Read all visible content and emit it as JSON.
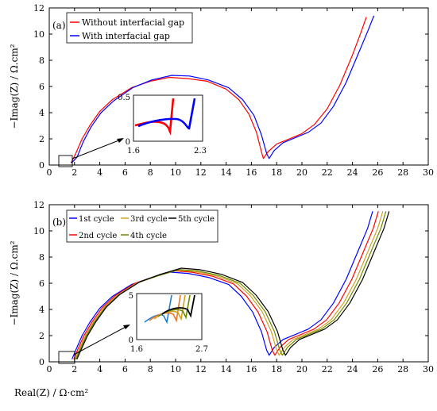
{
  "chart_data": [
    {
      "type": "line",
      "panel_label": "(a)",
      "xlabel": "",
      "ylabel": "−Imag(Z) / Ω.cm²",
      "xlim": [
        0,
        30
      ],
      "ylim": [
        0,
        12
      ],
      "xticks": [
        0,
        2,
        4,
        6,
        8,
        10,
        12,
        14,
        16,
        18,
        20,
        22,
        24,
        26,
        28,
        30
      ],
      "yticks": [
        0,
        2,
        4,
        6,
        8,
        10,
        12
      ],
      "legend_position": "top-left",
      "series": [
        {
          "name": "Without interfacial gap",
          "color": "#ff0000",
          "points": [
            [
              1.75,
              0.15
            ],
            [
              1.8,
              0.3
            ],
            [
              2.1,
              0.9
            ],
            [
              2.6,
              2.0
            ],
            [
              3.2,
              3.0
            ],
            [
              4.0,
              4.1
            ],
            [
              5.0,
              5.0
            ],
            [
              6.5,
              5.9
            ],
            [
              8.0,
              6.4
            ],
            [
              9.5,
              6.7
            ],
            [
              11,
              6.6
            ],
            [
              12.5,
              6.4
            ],
            [
              14,
              5.8
            ],
            [
              15,
              5.0
            ],
            [
              15.8,
              3.9
            ],
            [
              16.4,
              2.5
            ],
            [
              16.8,
              1.0
            ],
            [
              16.95,
              0.5
            ],
            [
              17.3,
              1.0
            ],
            [
              18,
              1.6
            ],
            [
              19,
              2.0
            ],
            [
              20,
              2.4
            ],
            [
              21,
              3.1
            ],
            [
              22,
              4.3
            ],
            [
              23,
              6.1
            ],
            [
              24,
              8.4
            ],
            [
              24.7,
              10.2
            ],
            [
              25.1,
              11.3
            ]
          ]
        },
        {
          "name": "With interfacial gap",
          "color": "#0000ff",
          "points": [
            [
              1.7,
              0.2
            ],
            [
              1.85,
              0.25
            ],
            [
              2.2,
              0.6
            ],
            [
              2.7,
              1.8
            ],
            [
              3.3,
              2.9
            ],
            [
              4.1,
              4.0
            ],
            [
              5.1,
              4.9
            ],
            [
              6.6,
              5.9
            ],
            [
              8.1,
              6.5
            ],
            [
              9.7,
              6.85
            ],
            [
              11.1,
              6.8
            ],
            [
              12.6,
              6.5
            ],
            [
              14.2,
              5.9
            ],
            [
              15.3,
              5.0
            ],
            [
              16.2,
              3.8
            ],
            [
              16.8,
              2.3
            ],
            [
              17.2,
              0.9
            ],
            [
              17.4,
              0.5
            ],
            [
              17.8,
              1.1
            ],
            [
              18.5,
              1.7
            ],
            [
              19.5,
              2.1
            ],
            [
              20.5,
              2.5
            ],
            [
              21.5,
              3.2
            ],
            [
              22.5,
              4.5
            ],
            [
              23.5,
              6.3
            ],
            [
              24.5,
              8.6
            ],
            [
              25.2,
              10.2
            ],
            [
              25.7,
              11.4
            ]
          ]
        }
      ],
      "inset": {
        "xlim": [
          1.6,
          2.3
        ],
        "ylim": [
          0,
          0.5
        ],
        "xtick_labels": [
          "1.6",
          "2.3"
        ],
        "ytick_labels": [
          "0",
          "0.5"
        ]
      }
    },
    {
      "type": "line",
      "panel_label": "(b)",
      "xlabel": "Real(Z) / Ω·cm²",
      "ylabel": "−Imag(Z) / Ω.cm²",
      "xlim": [
        0,
        30
      ],
      "ylim": [
        0,
        12
      ],
      "xticks": [
        0,
        2,
        4,
        6,
        8,
        10,
        12,
        14,
        16,
        18,
        20,
        22,
        24,
        26,
        28,
        30
      ],
      "yticks": [
        0,
        2,
        4,
        6,
        8,
        10,
        12
      ],
      "legend_position": "top-left",
      "series": [
        {
          "name": "1st cycle",
          "color": "#0000ff",
          "offset": 0.0,
          "peak": 6.85
        },
        {
          "name": "2nd cycle",
          "color": "#ff0000",
          "offset": 0.45,
          "peak": 6.95
        },
        {
          "name": "3rd cycle",
          "color": "#d4a020",
          "offset": 0.8,
          "peak": 7.0
        },
        {
          "name": "4th cycle",
          "color": "#6a8a00",
          "offset": 1.05,
          "peak": 7.05
        },
        {
          "name": "5th cycle",
          "color": "#000000",
          "offset": 1.3,
          "peak": 7.15
        }
      ],
      "inset": {
        "xlim": [
          1.6,
          2.7
        ],
        "ylim": [
          0,
          5
        ],
        "xtick_labels": [
          "1.6",
          "2.7"
        ],
        "ytick_labels": [
          "0",
          "5"
        ]
      }
    }
  ]
}
